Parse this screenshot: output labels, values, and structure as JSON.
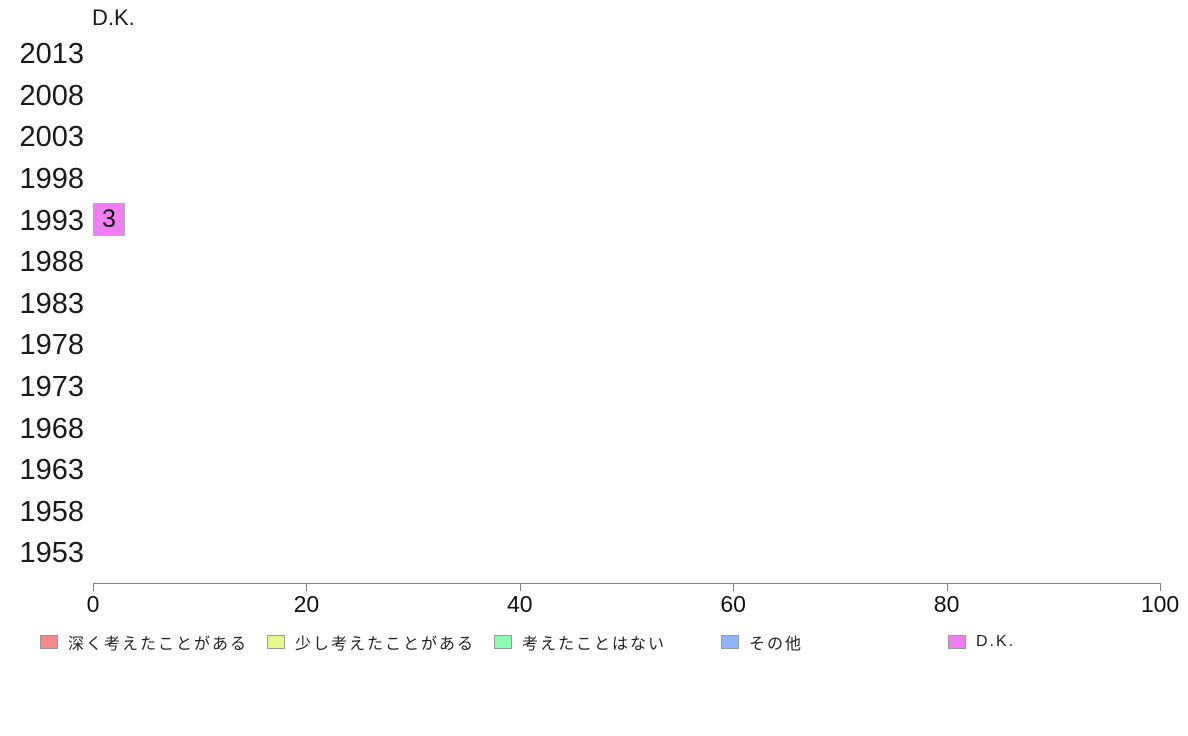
{
  "page": {
    "background": "#ffffff"
  },
  "chart_data": {
    "type": "bar",
    "orientation": "horizontal",
    "title": "D.K.",
    "categories": [
      "2013",
      "2008",
      "2003",
      "1998",
      "1993",
      "1988",
      "1983",
      "1978",
      "1973",
      "1968",
      "1963",
      "1958",
      "1953"
    ],
    "values": [
      null,
      null,
      null,
      null,
      3,
      null,
      null,
      null,
      null,
      null,
      null,
      null,
      null
    ],
    "xlabel": "",
    "ylabel": "",
    "xlim": [
      0,
      100
    ],
    "x_ticks": [
      0,
      20,
      40,
      60,
      80,
      100
    ],
    "grid": false,
    "bar_color": "#ef7ff1",
    "bar_border_color": "#b3b3b3",
    "axis_color": "#808080",
    "text_color": "#1a1a1a",
    "legend_position": "bottom",
    "legend": [
      {
        "label": "深く考えたことがある",
        "color": "#f48b8b"
      },
      {
        "label": "少し考えたことがある",
        "color": "#e6fa8e"
      },
      {
        "label": "考えたことはない",
        "color": "#8efab4"
      },
      {
        "label": "その他",
        "color": "#8eb4fa"
      },
      {
        "label": "D.K.",
        "color": "#ef7ff1"
      }
    ]
  }
}
